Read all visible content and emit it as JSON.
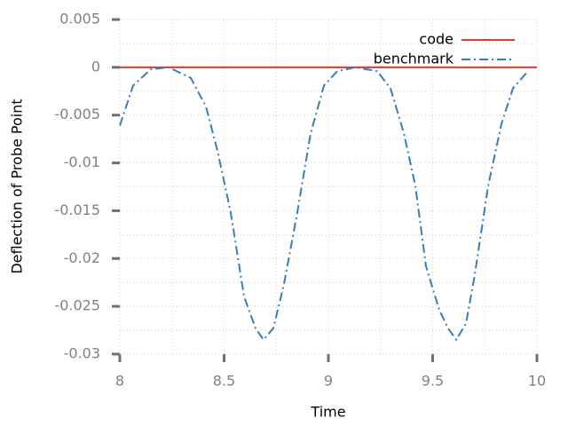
{
  "chart_data": {
    "type": "line",
    "xlabel": "Time",
    "ylabel": "Deflection of Probe Point",
    "xlim": [
      8,
      10
    ],
    "ylim": [
      -0.03,
      0.005
    ],
    "xticks": [
      8,
      8.5,
      9,
      9.5,
      10
    ],
    "yticks": [
      0.005,
      0,
      -0.005,
      -0.01,
      -0.015,
      -0.02,
      -0.025,
      -0.03
    ],
    "minor_xticks": [
      8.25,
      8.75,
      9.25,
      9.75
    ],
    "minor_yticks": [
      0.0025,
      -0.0025,
      -0.0075,
      -0.0125,
      -0.0175,
      -0.0225,
      -0.0275
    ],
    "grid": true,
    "legend": "upper right",
    "series": [
      {
        "name": "code",
        "color": "#e0392b",
        "dash": "solid",
        "x": [
          8,
          10
        ],
        "values": [
          0,
          0
        ]
      },
      {
        "name": "benchmark",
        "color": "#377eb8",
        "dash": "dashdot",
        "x": [
          8.0,
          8.064,
          8.149,
          8.234,
          8.34,
          8.413,
          8.468,
          8.532,
          8.596,
          8.651,
          8.689,
          8.736,
          8.787,
          8.851,
          8.915,
          8.979,
          9.043,
          9.128,
          9.234,
          9.298,
          9.362,
          9.417,
          9.468,
          9.532,
          9.574,
          9.613,
          9.66,
          9.702,
          9.766,
          9.83,
          9.885,
          9.957
        ],
        "values": [
          -0.0061,
          -0.0019,
          -0.0002,
          0,
          -0.0011,
          -0.0041,
          -0.0087,
          -0.0152,
          -0.024,
          -0.0273,
          -0.0285,
          -0.0273,
          -0.0227,
          -0.0152,
          -0.0069,
          -0.0019,
          -0.0004,
          0,
          -0.0004,
          -0.0022,
          -0.0069,
          -0.0124,
          -0.0208,
          -0.0254,
          -0.0273,
          -0.0285,
          -0.0268,
          -0.0217,
          -0.0124,
          -0.0059,
          -0.0022,
          -0.0004
        ]
      }
    ]
  }
}
